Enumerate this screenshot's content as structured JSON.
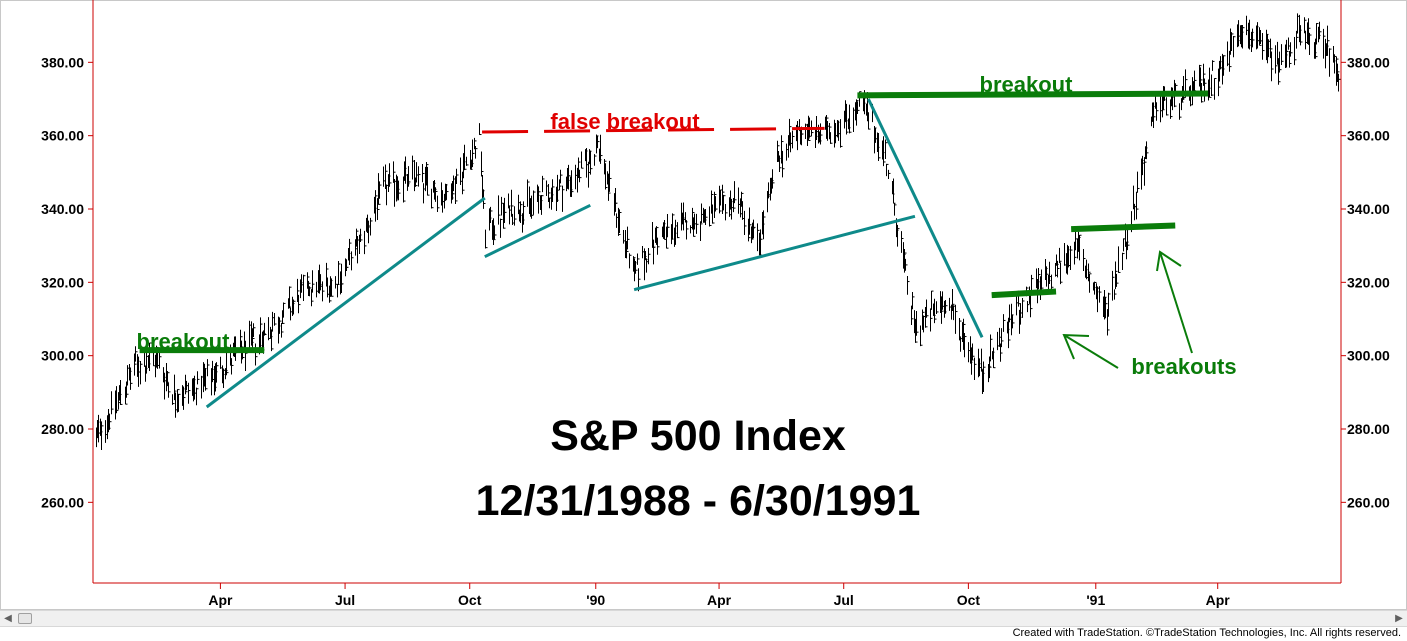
{
  "chart_data": {
    "type": "bar",
    "title": "S&P 500 Index",
    "subtitle": "12/31/1988 - 6/30/1991",
    "y_ticks": [
      "260.00",
      "280.00",
      "300.00",
      "320.00",
      "340.00",
      "360.00",
      "380.00"
    ],
    "y_tick_values": [
      260,
      280,
      300,
      320,
      340,
      360,
      380
    ],
    "ylim": [
      238,
      397
    ],
    "x_ticks": [
      {
        "label": "Apr",
        "date": "1989-04-03"
      },
      {
        "label": "Jul",
        "date": "1989-07-03"
      },
      {
        "label": "Oct",
        "date": "1989-10-02"
      },
      {
        "label": "'90",
        "date": "1990-01-02"
      },
      {
        "label": "Apr",
        "date": "1990-04-02"
      },
      {
        "label": "Jul",
        "date": "1990-07-02"
      },
      {
        "label": "Oct",
        "date": "1990-10-01"
      },
      {
        "label": "'91",
        "date": "1991-01-02"
      },
      {
        "label": "Apr",
        "date": "1991-04-01"
      }
    ],
    "xlim": [
      "1988-12-31",
      "1991-06-30"
    ],
    "price_path": [
      [
        "1988-12-31",
        276
      ],
      [
        "1989-01-31",
        297
      ],
      [
        "1989-02-15",
        299
      ],
      [
        "1989-03-01",
        289
      ],
      [
        "1989-03-24",
        293
      ],
      [
        "1989-04-14",
        300
      ],
      [
        "1989-05-15",
        309
      ],
      [
        "1989-06-06",
        319
      ],
      [
        "1989-06-26",
        320
      ],
      [
        "1989-07-14",
        331
      ],
      [
        "1989-07-31",
        346
      ],
      [
        "1989-08-24",
        349
      ],
      [
        "1989-09-14",
        343
      ],
      [
        "1989-10-09",
        359
      ],
      [
        "1989-10-13",
        334
      ],
      [
        "1989-10-31",
        340
      ],
      [
        "1989-11-15",
        341
      ],
      [
        "1989-12-15",
        348
      ],
      [
        "1989-12-29",
        353
      ],
      [
        "1990-01-03",
        358
      ],
      [
        "1990-01-30",
        322
      ],
      [
        "1990-02-15",
        332
      ],
      [
        "1990-03-09",
        336
      ],
      [
        "1990-03-30",
        339
      ],
      [
        "1990-04-15",
        343
      ],
      [
        "1990-04-30",
        330
      ],
      [
        "1990-05-15",
        354
      ],
      [
        "1990-06-01",
        362
      ],
      [
        "1990-06-15",
        360
      ],
      [
        "1990-07-16",
        368
      ],
      [
        "1990-08-01",
        355
      ],
      [
        "1990-08-23",
        307
      ],
      [
        "1990-09-14",
        315
      ],
      [
        "1990-10-11",
        295
      ],
      [
        "1990-11-01",
        310
      ],
      [
        "1990-11-30",
        322
      ],
      [
        "1990-12-18",
        330
      ],
      [
        "1991-01-09",
        311
      ],
      [
        "1991-01-31",
        343
      ],
      [
        "1991-02-15",
        368
      ],
      [
        "1991-03-15",
        372
      ],
      [
        "1991-04-05",
        379
      ],
      [
        "1991-04-17",
        390
      ],
      [
        "1991-05-15",
        380
      ],
      [
        "1991-05-29",
        387
      ],
      [
        "1991-06-18",
        385
      ],
      [
        "1991-06-28",
        378
      ]
    ],
    "trendlines": [
      {
        "from": [
          "1989-03-24",
          286
        ],
        "to": [
          "1989-10-13",
          343
        ]
      },
      {
        "from": [
          "1989-10-13",
          327
        ],
        "to": [
          "1989-12-29",
          341
        ]
      },
      {
        "from": [
          "1990-01-30",
          318
        ],
        "to": [
          "1990-08-23",
          338
        ]
      },
      {
        "from": [
          "1990-07-20",
          370
        ],
        "to": [
          "1990-10-11",
          305
        ]
      }
    ],
    "resistance_lines": [
      {
        "from": [
          "1989-02-03",
          301.5
        ],
        "to": [
          "1989-05-05",
          301.5
        ],
        "color": "#0a7c0a",
        "style": "solid"
      },
      {
        "from": [
          "1989-10-11",
          361
        ],
        "to": [
          "1990-06-18",
          362
        ],
        "color": "#e00000",
        "style": "dashed"
      },
      {
        "from": [
          "1990-07-12",
          371
        ],
        "to": [
          "1991-03-25",
          371.5
        ],
        "color": "#0a7c0a",
        "style": "solid"
      },
      {
        "from": [
          "1990-10-18",
          316.5
        ],
        "to": [
          "1990-12-04",
          317.5
        ],
        "color": "#0a7c0a",
        "style": "solid"
      },
      {
        "from": [
          "1990-12-15",
          334.5
        ],
        "to": [
          "1991-03-01",
          335.5
        ],
        "color": "#0a7c0a",
        "style": "solid"
      }
    ]
  },
  "annotations": {
    "breakout_left": "breakout",
    "false_breakout": "false breakout",
    "breakout_top": "breakout",
    "breakouts": "breakouts"
  },
  "colors": {
    "trendline": "#0e8a8a",
    "breakout_green": "#0a7c0a",
    "false_red": "#e00000",
    "frame_red": "#cc0000",
    "bars": "#000000"
  },
  "footer": "Created with TradeStation. ©TradeStation Technologies, Inc. All rights reserved."
}
